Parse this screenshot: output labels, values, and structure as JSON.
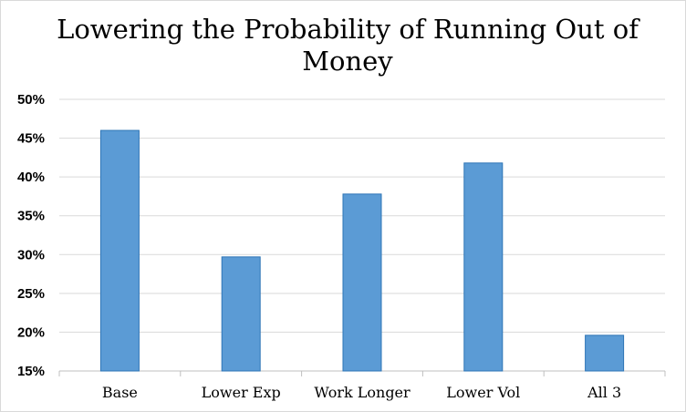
{
  "chart_data": {
    "type": "bar",
    "title": "Lowering the Probability of Running Out of Money",
    "xlabel": "",
    "ylabel": "",
    "categories": [
      "Base",
      "Lower Exp",
      "Work Longer",
      "Lower Vol",
      "All 3"
    ],
    "values": [
      46,
      29.7,
      37.8,
      41.8,
      19.6
    ],
    "ylim": [
      15,
      50
    ],
    "yticks": [
      15,
      20,
      25,
      30,
      35,
      40,
      45,
      50
    ],
    "ytick_format": "%",
    "grid": true,
    "legend": "none",
    "colors": {
      "bar_fill": "#5b9bd5",
      "bar_stroke": "#2e75b6",
      "grid": "#d9d9d9",
      "axis": "#bfbfbf"
    }
  }
}
